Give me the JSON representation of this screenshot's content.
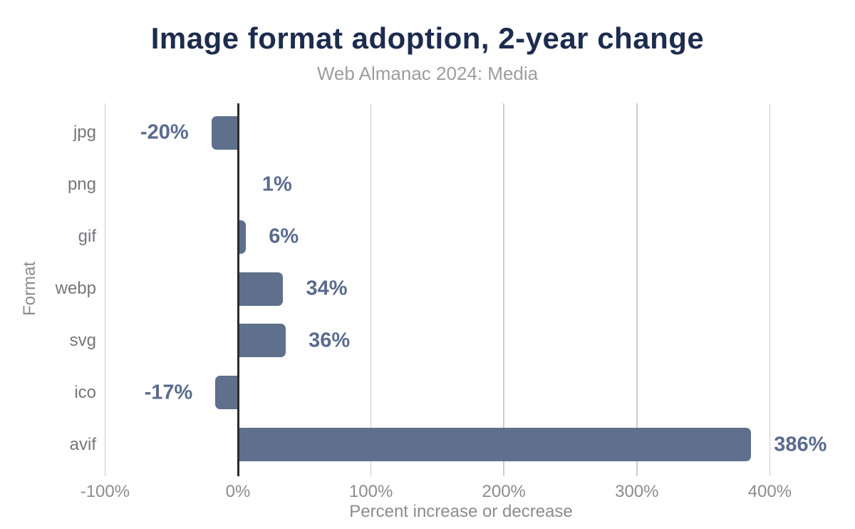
{
  "header": {
    "title": "Image format adoption, 2-year change",
    "subtitle": "Web Almanac 2024: Media"
  },
  "colors": {
    "bar": "#5f708c",
    "title": "#1d2c4e",
    "subtitle": "#9b9da0",
    "axis_text": "#8a8c8f",
    "category_text": "#75767a",
    "data_label": "#5a6b8d",
    "gridline": "#cccccc",
    "zero_line": "#2b2b2b"
  },
  "chart_data": {
    "type": "bar",
    "orientation": "horizontal",
    "title": "Image format adoption, 2-year change",
    "subtitle": "Web Almanac 2024: Media",
    "xlabel": "Percent increase or decrease",
    "ylabel": "Format",
    "categories": [
      "jpg",
      "png",
      "gif",
      "webp",
      "svg",
      "ico",
      "avif"
    ],
    "values": [
      -20,
      1,
      6,
      34,
      36,
      -17,
      386
    ],
    "data_labels": [
      "-20%",
      "1%",
      "6%",
      "34%",
      "36%",
      "-17%",
      "386%"
    ],
    "xlim": [
      -100,
      455
    ],
    "xticks": [
      {
        "value": -100,
        "label": "-100%"
      },
      {
        "value": 0,
        "label": "0%"
      },
      {
        "value": 100,
        "label": "100%"
      },
      {
        "value": 200,
        "label": "200%"
      },
      {
        "value": 300,
        "label": "300%"
      },
      {
        "value": 400,
        "label": "400%"
      }
    ],
    "grid": "vertical gridlines at x ticks, zero line emphasized dark",
    "legend": "none",
    "bar_color": "#5f708c"
  }
}
